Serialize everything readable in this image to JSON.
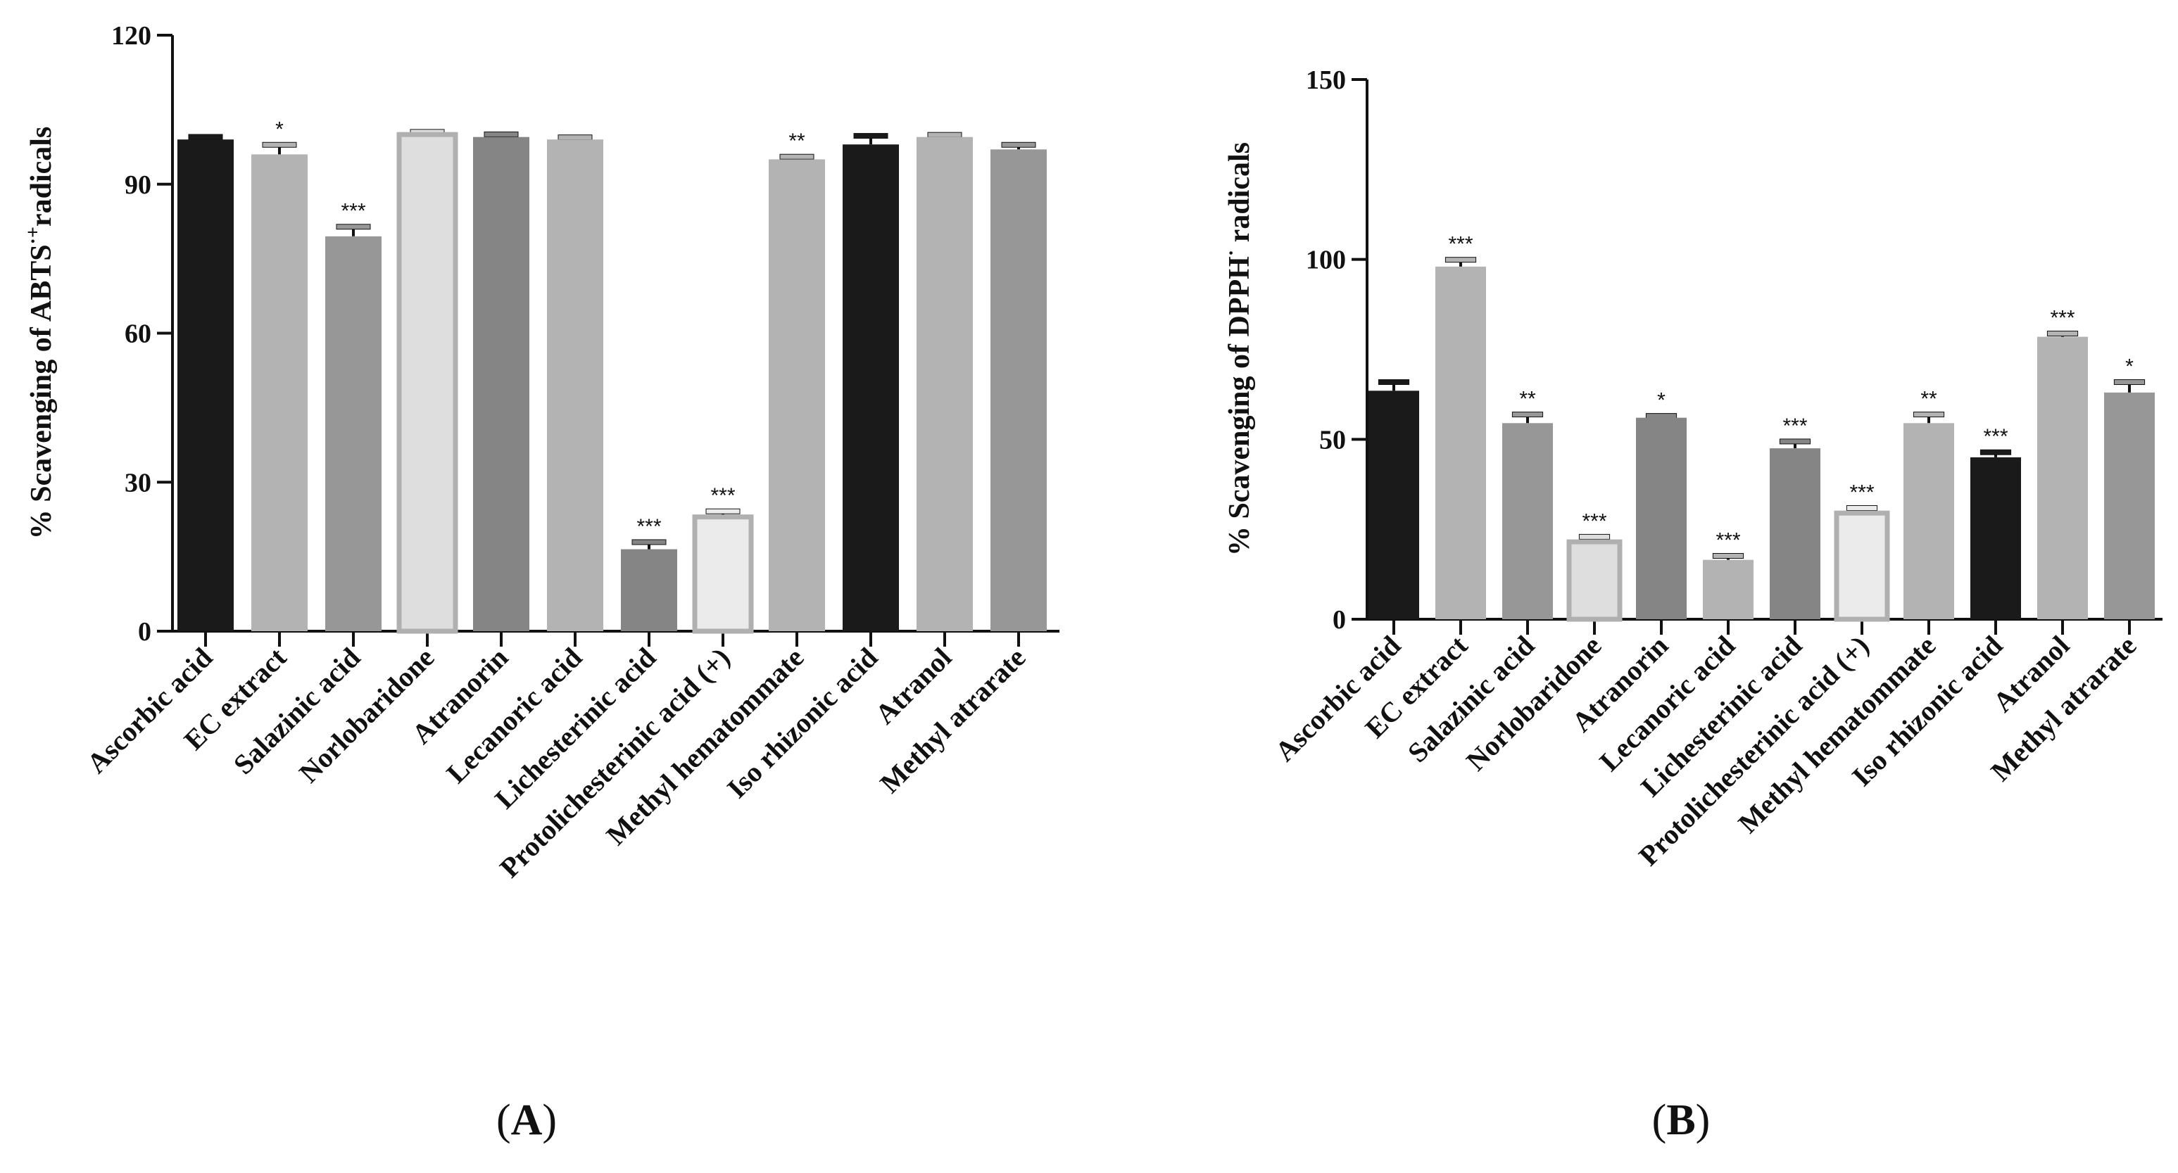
{
  "chart_data": [
    {
      "type": "bar",
      "panel_label": "A",
      "ylabel": "% Scavenging of ABTS·⁺radicals",
      "ylabel_prefix": "% Scavenging of ABTS",
      "ylabel_sup": "·+",
      "ylabel_suffix": "radicals",
      "ylim": [
        0,
        120
      ],
      "yticks": [
        0,
        30,
        60,
        90,
        120
      ],
      "categories": [
        "Ascorbic acid",
        "EC extract",
        "Salazinic acid",
        "Norlobaridone",
        "Atranorin",
        "Lecanoric acid",
        "Lichesterinic acid",
        "Protolichesterinic acid (+)",
        "Methyl hematommate",
        "Iso rhizonic acid",
        "Atranol",
        "Methyl atrarate"
      ],
      "values": [
        99,
        96,
        79.5,
        100,
        99.5,
        99,
        16.5,
        23,
        95,
        98,
        99.5,
        97
      ],
      "errors": [
        0.6,
        2,
        2,
        0.6,
        0.6,
        0.5,
        1.5,
        1.2,
        0.6,
        1.8,
        0.5,
        1
      ],
      "significance": [
        "",
        "*",
        "***",
        "",
        "",
        "",
        "***",
        "***",
        "**",
        "",
        "",
        ""
      ],
      "colors": [
        "#1a1a1a",
        "#b3b3b3",
        "#979797",
        "#dedede",
        "#858585",
        "#b3b3b3",
        "#858585",
        "#ebebeb",
        "#b3b3b3",
        "#1a1a1a",
        "#b3b3b3",
        "#979797"
      ]
    },
    {
      "type": "bar",
      "panel_label": "B",
      "ylabel": "% Scavenging of DPPH· radicals",
      "ylabel_prefix": "% Scavenging of DPPH",
      "ylabel_sup": "·",
      "ylabel_suffix": " radicals",
      "ylim": [
        0,
        150
      ],
      "yticks": [
        0,
        50,
        100,
        150
      ],
      "categories": [
        "Ascorbic acid",
        "EC extract",
        "Salazinic acid",
        "Norlobaridone",
        "Atranorin",
        "Lecanoric acid",
        "Lichesterinic acid",
        "Protolichesterinic acid (+)",
        "Methyl hematommate",
        "Iso rhizonic acid",
        "Atranol",
        "Methyl atrarate"
      ],
      "values": [
        63.5,
        98,
        54.5,
        21.5,
        56,
        16.5,
        47.5,
        29.5,
        54.5,
        45,
        78.5,
        63
      ],
      "errors": [
        2.5,
        2,
        2.5,
        1.5,
        0.6,
        1.2,
        2,
        1.5,
        2.5,
        1.5,
        1,
        3
      ],
      "significance": [
        "",
        "***",
        "**",
        "***",
        "*",
        "***",
        "***",
        "***",
        "**",
        "***",
        "***",
        "*"
      ],
      "colors": [
        "#1a1a1a",
        "#b3b3b3",
        "#979797",
        "#dedede",
        "#858585",
        "#b3b3b3",
        "#858585",
        "#ebebeb",
        "#b3b3b3",
        "#1a1a1a",
        "#b3b3b3",
        "#979797"
      ]
    }
  ]
}
